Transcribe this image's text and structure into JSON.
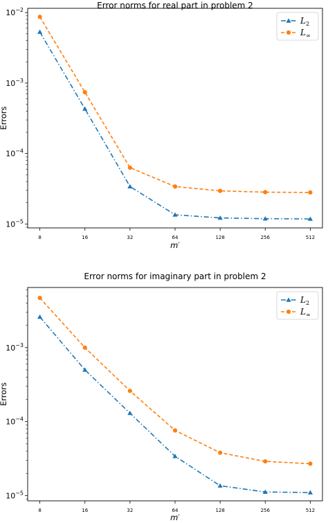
{
  "chart_data": [
    {
      "type": "line",
      "title": "Error norms for real part in problem 2",
      "xlabel": "m′",
      "ylabel": "Errors",
      "xscale": "log2",
      "yscale": "log10",
      "x": [
        8,
        16,
        32,
        64,
        128,
        256,
        512
      ],
      "x_tick_labels": [
        "8",
        "16",
        "32",
        "64",
        "128",
        "256",
        "512"
      ],
      "y_ticks": [
        {
          "value": 0.01,
          "base": "10",
          "exp": "−2"
        },
        {
          "value": 0.001,
          "base": "10",
          "exp": "−3"
        },
        {
          "value": 0.0001,
          "base": "10",
          "exp": "−4"
        },
        {
          "value": 1e-05,
          "base": "10",
          "exp": "−5"
        }
      ],
      "ylim": [
        8.8e-06,
        0.0115
      ],
      "grid": false,
      "legend": "top-right",
      "series": [
        {
          "name": "L",
          "sub": "2",
          "color": "#1f77b4",
          "marker": "triangle",
          "linestyle": "dashdot",
          "values": [
            0.0053,
            0.00043,
            3.4e-05,
            1.35e-05,
            1.22e-05,
            1.19e-05,
            1.18e-05
          ]
        },
        {
          "name": "L",
          "sub": "∞",
          "color": "#ff7f0e",
          "marker": "circle",
          "linestyle": "dashed",
          "values": [
            0.0087,
            0.00074,
            6.3e-05,
            3.4e-05,
            2.95e-05,
            2.83e-05,
            2.8e-05
          ]
        }
      ]
    },
    {
      "type": "line",
      "title": "Error norms for imaginary part in problem 2",
      "xlabel": "m′",
      "ylabel": "Errors",
      "xscale": "log2",
      "yscale": "log10",
      "x": [
        8,
        16,
        32,
        64,
        128,
        256,
        512
      ],
      "x_tick_labels": [
        "8",
        "16",
        "32",
        "64",
        "128",
        "256",
        "512"
      ],
      "y_ticks": [
        {
          "value": 0.001,
          "base": "10",
          "exp": "−3"
        },
        {
          "value": 0.0001,
          "base": "10",
          "exp": "−4"
        },
        {
          "value": 1e-05,
          "base": "10",
          "exp": "−5"
        }
      ],
      "ylim": [
        8.5e-06,
        0.0065
      ],
      "grid": false,
      "legend": "top-right",
      "series": [
        {
          "name": "L",
          "sub": "2",
          "color": "#1f77b4",
          "marker": "triangle",
          "linestyle": "dashdot",
          "values": [
            0.0026,
            0.0005,
            0.00013,
            3.4e-05,
            1.36e-05,
            1.12e-05,
            1.1e-05
          ]
        },
        {
          "name": "L",
          "sub": "∞",
          "color": "#ff7f0e",
          "marker": "circle",
          "linestyle": "dashed",
          "values": [
            0.0047,
            0.001,
            0.00026,
            7.6e-05,
            3.8e-05,
            2.9e-05,
            2.7e-05
          ]
        }
      ]
    }
  ]
}
